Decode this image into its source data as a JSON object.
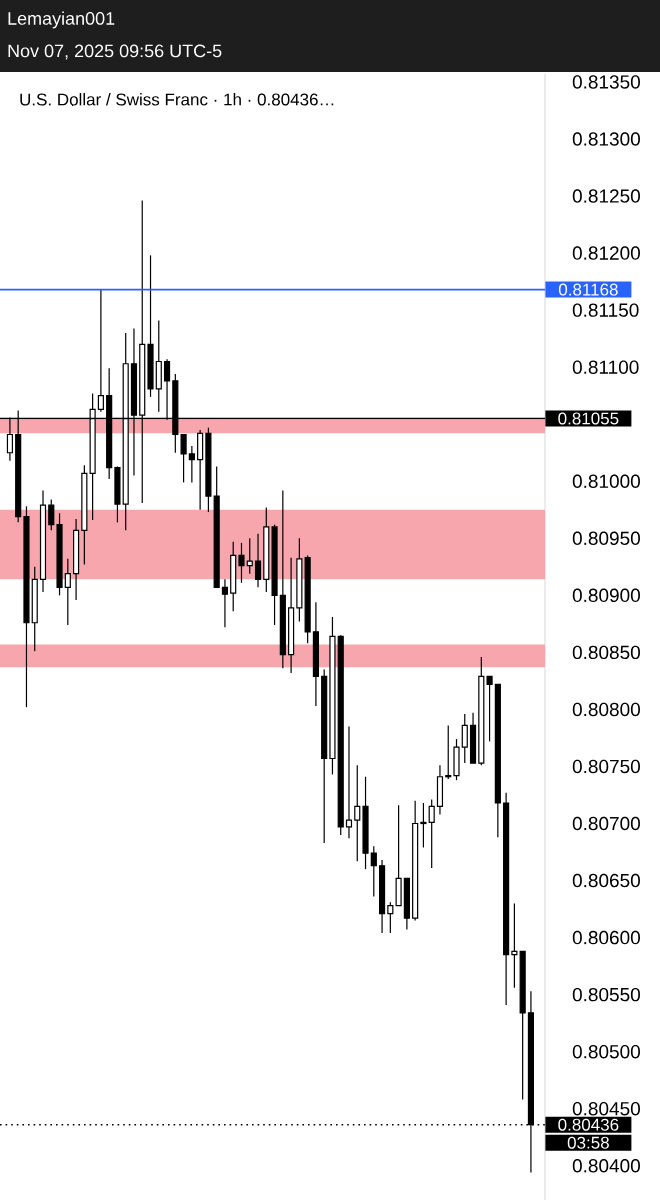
{
  "chart_data": {
    "type": "candlestick",
    "title": "U.S. Dollar / Swiss Franc · 1h · 0.80436…",
    "annotations": [
      "Lemayian001",
      "Nov 07, 2025 09:56 UTC-5",
      "03:58"
    ],
    "categories": [
      null,
      null,
      null,
      null,
      null,
      null,
      null,
      null,
      null,
      null,
      null,
      null,
      null,
      null,
      null,
      null,
      null,
      null,
      null,
      null,
      null,
      null,
      null,
      null,
      null,
      null,
      null,
      null,
      null,
      null,
      null,
      null,
      null,
      null,
      null,
      null,
      null,
      null,
      null,
      null,
      null,
      null,
      null,
      null,
      null,
      null,
      null,
      null,
      null,
      null,
      null,
      null,
      null,
      null,
      null,
      null,
      null,
      null,
      null,
      null,
      null,
      null,
      null,
      null
    ],
    "ohlc": [
      [
        0.81025,
        0.81056,
        0.81018,
        0.81041
      ],
      [
        0.81041,
        0.81062,
        0.80964,
        0.80969
      ],
      [
        0.80969,
        0.80978,
        0.80802,
        0.80876
      ],
      [
        0.80876,
        0.80925,
        0.80851,
        0.80914
      ],
      [
        0.80914,
        0.80992,
        0.80903,
        0.80979
      ],
      [
        0.80979,
        0.80984,
        0.80957,
        0.80962
      ],
      [
        0.80962,
        0.80972,
        0.809,
        0.80907
      ],
      [
        0.80907,
        0.80932,
        0.80874,
        0.80919
      ],
      [
        0.80919,
        0.80967,
        0.80896,
        0.80957
      ],
      [
        0.80957,
        0.81014,
        0.80927,
        0.81007
      ],
      [
        0.81007,
        0.81077,
        0.80966,
        0.81063
      ],
      [
        0.81063,
        0.81168,
        0.81061,
        0.81075
      ],
      [
        0.81075,
        0.81099,
        0.81002,
        0.81012
      ],
      [
        0.81012,
        0.81013,
        0.80964,
        0.8098
      ],
      [
        0.8098,
        0.8113,
        0.80957,
        0.81103
      ],
      [
        0.81103,
        0.81134,
        0.81005,
        0.81058
      ],
      [
        0.81058,
        0.81246,
        0.80981,
        0.8112
      ],
      [
        0.8112,
        0.81198,
        0.81074,
        0.81081
      ],
      [
        0.81081,
        0.81141,
        0.81061,
        0.81105
      ],
      [
        0.81105,
        0.81107,
        0.81054,
        0.81088
      ],
      [
        0.81088,
        0.81094,
        0.81025,
        0.81041
      ],
      [
        0.81041,
        0.81041,
        0.80999,
        0.81024
      ],
      [
        0.81024,
        0.81031,
        0.80999,
        0.81019
      ],
      [
        0.81019,
        0.81045,
        0.80975,
        0.81042
      ],
      [
        0.81042,
        0.81047,
        0.80973,
        0.80987
      ],
      [
        0.80987,
        0.81013,
        0.80907,
        0.80907
      ],
      [
        0.80907,
        0.80914,
        0.80872,
        0.80901
      ],
      [
        0.80902,
        0.80947,
        0.80886,
        0.80935
      ],
      [
        0.80935,
        0.80946,
        0.80911,
        0.80926
      ],
      [
        0.80926,
        0.8095,
        0.80919,
        0.8093
      ],
      [
        0.8093,
        0.80954,
        0.80907,
        0.80914
      ],
      [
        0.80914,
        0.80977,
        0.80903,
        0.8096
      ],
      [
        0.8096,
        0.80962,
        0.80874,
        0.809
      ],
      [
        0.809,
        0.80992,
        0.80836,
        0.80848
      ],
      [
        0.80848,
        0.80933,
        0.80832,
        0.80889
      ],
      [
        0.80889,
        0.8095,
        0.80877,
        0.80932
      ],
      [
        0.80933,
        0.80935,
        0.80858,
        0.80868
      ],
      [
        0.80868,
        0.80894,
        0.80803,
        0.80829
      ],
      [
        0.80829,
        0.80835,
        0.80683,
        0.80757
      ],
      [
        0.80757,
        0.80881,
        0.80743,
        0.80864
      ],
      [
        0.80864,
        0.80865,
        0.8069,
        0.80697
      ],
      [
        0.80697,
        0.80785,
        0.80687,
        0.80703
      ],
      [
        0.80703,
        0.80751,
        0.80667,
        0.80715
      ],
      [
        0.80715,
        0.80741,
        0.8066,
        0.80674
      ],
      [
        0.80674,
        0.8068,
        0.80636,
        0.80663
      ],
      [
        0.80663,
        0.80668,
        0.80604,
        0.80621
      ],
      [
        0.80621,
        0.80631,
        0.80604,
        0.80628
      ],
      [
        0.80628,
        0.80716,
        0.80628,
        0.80652
      ],
      [
        0.80652,
        0.80652,
        0.80607,
        0.80617
      ],
      [
        0.80617,
        0.8072,
        0.80615,
        0.807
      ],
      [
        0.807,
        0.80718,
        0.80679,
        0.80701
      ],
      [
        0.80701,
        0.80721,
        0.80661,
        0.80715
      ],
      [
        0.80715,
        0.80751,
        0.80708,
        0.80741
      ],
      [
        0.80741,
        0.80786,
        0.80739,
        0.80742
      ],
      [
        0.80742,
        0.80774,
        0.80738,
        0.80767
      ],
      [
        0.80767,
        0.80796,
        0.80753,
        0.80786
      ],
      [
        0.80786,
        0.80797,
        0.80753,
        0.80753
      ],
      [
        0.80753,
        0.80846,
        0.80751,
        0.80829
      ],
      [
        0.80829,
        0.80829,
        0.80772,
        0.80822
      ],
      [
        0.80822,
        0.80822,
        0.80688,
        0.80718
      ],
      [
        0.80718,
        0.80727,
        0.80541,
        0.80585
      ],
      [
        0.80585,
        0.8063,
        0.80556,
        0.80588
      ],
      [
        0.80588,
        0.80588,
        0.80458,
        0.80534
      ],
      [
        0.80534,
        0.80553,
        0.80394,
        0.80436
      ]
    ],
    "ylim": [
      0.8037,
      0.81357
    ],
    "yticks": [
      {
        "value": 0.804,
        "label": "0.80400"
      },
      {
        "value": 0.8045,
        "label": "0.80450"
      },
      {
        "value": 0.805,
        "label": "0.80500"
      },
      {
        "value": 0.8055,
        "label": "0.80550"
      },
      {
        "value": 0.806,
        "label": "0.80600"
      },
      {
        "value": 0.8065,
        "label": "0.80650"
      },
      {
        "value": 0.807,
        "label": "0.80700"
      },
      {
        "value": 0.8075,
        "label": "0.80750"
      },
      {
        "value": 0.808,
        "label": "0.80800"
      },
      {
        "value": 0.8085,
        "label": "0.80850"
      },
      {
        "value": 0.809,
        "label": "0.80900"
      },
      {
        "value": 0.8095,
        "label": "0.80950"
      },
      {
        "value": 0.81,
        "label": "0.81000"
      },
      {
        "value": 0.811,
        "label": "0.81100"
      },
      {
        "value": 0.8115,
        "label": "0.81150"
      },
      {
        "value": 0.812,
        "label": "0.81200"
      },
      {
        "value": 0.8125,
        "label": "0.81250"
      },
      {
        "value": 0.813,
        "label": "0.81300"
      },
      {
        "value": 0.8135,
        "label": "0.81350"
      }
    ],
    "tick_labels": "y",
    "bands": [
      {
        "axis": "y",
        "from": 0.81042,
        "to": 0.81054,
        "color": "#f7a6ad"
      },
      {
        "axis": "y",
        "from": 0.80914,
        "to": 0.80975,
        "color": "#f7a6ad"
      },
      {
        "axis": "y",
        "from": 0.80837,
        "to": 0.80857,
        "color": "#f7a6ad"
      }
    ],
    "ref_lines": [
      {
        "axis": "y",
        "value": 0.81168,
        "label": "0.81168",
        "color": "#2962ff",
        "line_style": "solid"
      },
      {
        "axis": "y",
        "value": 0.81055,
        "label": "0.81055",
        "color": "#000000",
        "line_style": "solid"
      },
      {
        "axis": "y",
        "value": 0.80436,
        "label": "0.80436",
        "color": "#000000",
        "line_style": "dotted"
      }
    ]
  }
}
